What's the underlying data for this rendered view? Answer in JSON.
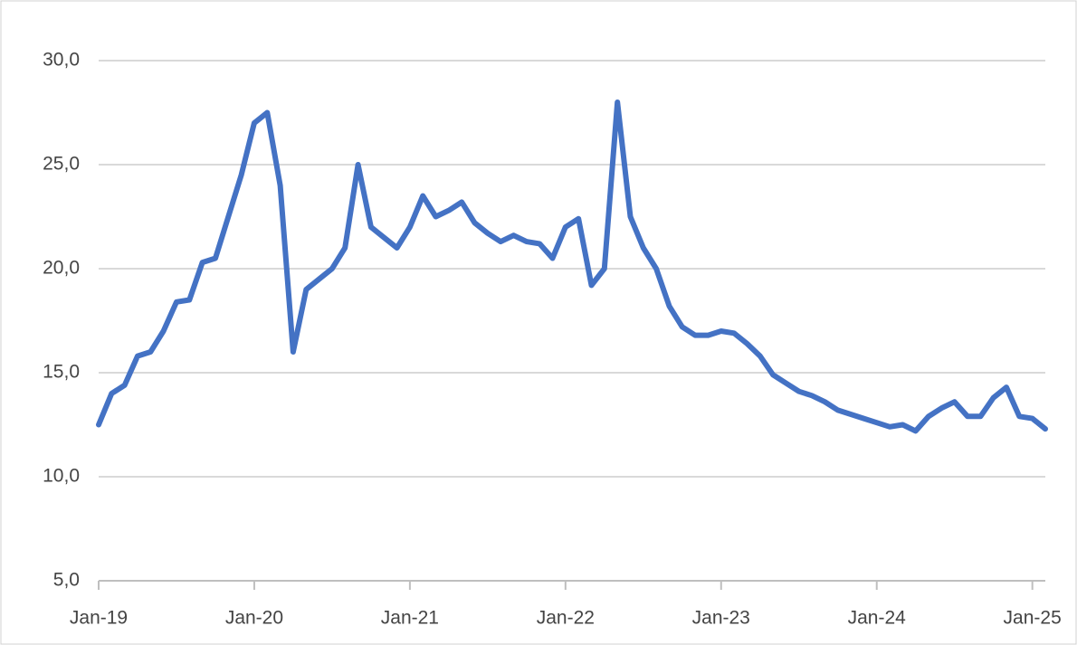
{
  "chart_data": {
    "type": "line",
    "x": [
      "2019-01",
      "2019-02",
      "2019-03",
      "2019-04",
      "2019-05",
      "2019-06",
      "2019-07",
      "2019-08",
      "2019-09",
      "2019-10",
      "2019-11",
      "2019-12",
      "2020-01",
      "2020-02",
      "2020-03",
      "2020-04",
      "2020-05",
      "2020-06",
      "2020-07",
      "2020-08",
      "2020-09",
      "2020-10",
      "2020-11",
      "2020-12",
      "2021-01",
      "2021-02",
      "2021-03",
      "2021-04",
      "2021-05",
      "2021-06",
      "2021-07",
      "2021-08",
      "2021-09",
      "2021-10",
      "2021-11",
      "2021-12",
      "2022-01",
      "2022-02",
      "2022-03",
      "2022-04",
      "2022-05",
      "2022-06",
      "2022-07",
      "2022-08",
      "2022-09",
      "2022-10",
      "2022-11",
      "2022-12",
      "2023-01",
      "2023-02",
      "2023-03",
      "2023-04",
      "2023-05",
      "2023-06",
      "2023-07",
      "2023-08",
      "2023-09",
      "2023-10",
      "2023-11",
      "2023-12",
      "2024-01",
      "2024-02",
      "2024-03",
      "2024-04",
      "2024-05",
      "2024-06",
      "2024-07",
      "2024-08",
      "2024-09",
      "2024-10",
      "2024-11",
      "2024-12",
      "2025-01",
      "2025-02"
    ],
    "series": [
      {
        "color": "#4472c4",
        "values": [
          12.5,
          14.0,
          14.4,
          15.8,
          16.0,
          17.0,
          18.4,
          18.5,
          20.3,
          20.5,
          22.5,
          24.5,
          27.0,
          27.5,
          24.0,
          16.0,
          19.0,
          19.5,
          20.0,
          21.0,
          25.0,
          22.0,
          21.5,
          21.0,
          22.0,
          23.5,
          22.5,
          22.8,
          23.2,
          22.2,
          21.7,
          21.3,
          21.6,
          21.3,
          21.2,
          20.5,
          22.0,
          22.4,
          19.2,
          20.0,
          28.0,
          22.5,
          21.0,
          20.0,
          18.2,
          17.2,
          16.8,
          16.8,
          17.0,
          16.9,
          16.4,
          15.8,
          14.9,
          14.5,
          14.1,
          13.9,
          13.6,
          13.2,
          13.0,
          12.8,
          12.6,
          12.4,
          12.5,
          12.2,
          12.9,
          13.3,
          13.6,
          12.9,
          12.9,
          13.8,
          14.3,
          12.9,
          12.8,
          12.3
        ]
      }
    ],
    "xlim": [
      "2019-01",
      "2025-02"
    ],
    "xticks": [
      {
        "value": "2019-01",
        "label": "Jan-19"
      },
      {
        "value": "2020-01",
        "label": "Jan-20"
      },
      {
        "value": "2021-01",
        "label": "Jan-21"
      },
      {
        "value": "2022-01",
        "label": "Jan-22"
      },
      {
        "value": "2023-01",
        "label": "Jan-23"
      },
      {
        "value": "2024-01",
        "label": "Jan-24"
      },
      {
        "value": "2025-01",
        "label": "Jan-25"
      }
    ],
    "ylim": [
      5,
      30
    ],
    "yticks": [
      {
        "value": 5,
        "label": "5,0"
      },
      {
        "value": 10,
        "label": "10,0"
      },
      {
        "value": 15,
        "label": "15,0"
      },
      {
        "value": 20,
        "label": "20,0"
      },
      {
        "value": 25,
        "label": "25,0"
      },
      {
        "value": 30,
        "label": "30,0"
      }
    ],
    "grid": true
  }
}
